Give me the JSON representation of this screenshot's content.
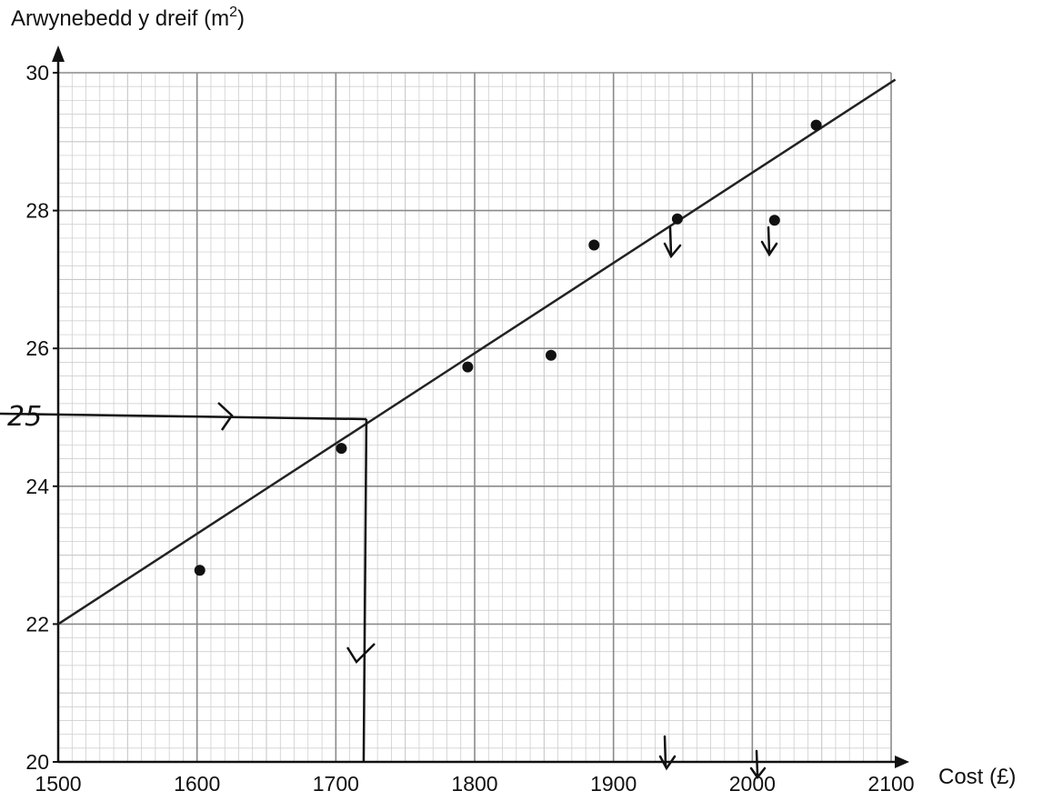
{
  "chart_data": {
    "type": "scatter",
    "xlabel": "Cost (£)",
    "ylabel": "Arwynebedd y dreif (m²)",
    "xlim": [
      1500,
      2100
    ],
    "ylim": [
      20,
      30
    ],
    "x_ticks": [
      1500,
      1600,
      1700,
      1800,
      1900,
      2000,
      2100
    ],
    "y_ticks": [
      20,
      22,
      24,
      26,
      28,
      30
    ],
    "grid": true,
    "series": [
      {
        "points": [
          {
            "x": 1602,
            "y": 22.78
          },
          {
            "x": 1704,
            "y": 24.55
          },
          {
            "x": 1795,
            "y": 25.73
          },
          {
            "x": 1855,
            "y": 25.9
          },
          {
            "x": 1886,
            "y": 27.5
          },
          {
            "x": 1946,
            "y": 27.88
          },
          {
            "x": 2016,
            "y": 27.86
          },
          {
            "x": 2046,
            "y": 29.24
          }
        ]
      }
    ],
    "line_of_best_fit": {
      "x1": 1500,
      "y1": 22.0,
      "x2": 2103,
      "y2": 29.9
    },
    "annotation": {
      "label": "25",
      "y_value": 25,
      "x_value": 1722
    }
  },
  "colors": {
    "grid_major": "#8a8a8a",
    "grid_minor": "#c8c8c8",
    "ink": "#111111"
  }
}
